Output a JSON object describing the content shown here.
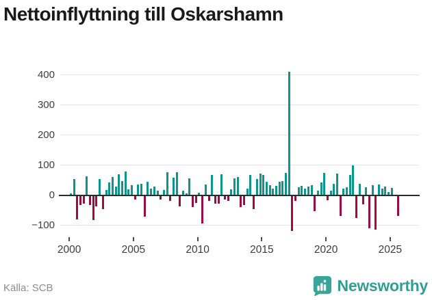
{
  "header": {
    "title": "Nettoinflyttning till Oskarshamn"
  },
  "footer": {
    "source": "Källa: SCB",
    "brand": "Newsworthy"
  },
  "colors": {
    "positive": "#0e948c",
    "negative": "#9a0c42",
    "grid": "#e4e4e4",
    "zero_axis": "#2b2b2b",
    "title_text": "#1a1a1a",
    "tick_text": "#3c3c3c",
    "source_text": "#8c8c8c",
    "brand_teal": "#2f9e95",
    "logo_badge": "#3aa39a"
  },
  "chart_data": {
    "type": "bar",
    "title": "Nettoinflyttning till Oskarshamn",
    "frequency": "quarterly",
    "start_year": 2000,
    "start_quarter": 1,
    "xlim": [
      1999.3,
      2027.3
    ],
    "ylim": [
      -135,
      450
    ],
    "grid": "horizontal",
    "legend": "none",
    "xticks": [
      2000,
      2005,
      2010,
      2015,
      2020,
      2025
    ],
    "yticks": [
      {
        "value": -100,
        "label": "−100"
      },
      {
        "value": 0,
        "label": "0"
      },
      {
        "value": 100,
        "label": "100"
      },
      {
        "value": 200,
        "label": "200"
      },
      {
        "value": 300,
        "label": "300"
      },
      {
        "value": 400,
        "label": "400"
      }
    ],
    "values": [
      6,
      55,
      -80,
      -33,
      -29,
      63,
      -33,
      -83,
      -37,
      55,
      -47,
      17,
      42,
      61,
      30,
      70,
      48,
      78,
      20,
      33,
      -15,
      35,
      38,
      -72,
      44,
      22,
      30,
      15,
      -14,
      17,
      76,
      -18,
      58,
      76,
      -37,
      15,
      5,
      56,
      -40,
      -26,
      8,
      -95,
      36,
      -18,
      68,
      -27,
      -29,
      71,
      -14,
      -19,
      20,
      57,
      60,
      -39,
      -33,
      22,
      68,
      -47,
      53,
      73,
      67,
      44,
      33,
      22,
      31,
      44,
      48,
      75,
      412,
      -120,
      -19,
      26,
      31,
      22,
      28,
      33,
      -52,
      15,
      42,
      75,
      -16,
      15,
      38,
      73,
      -68,
      23,
      27,
      68,
      99,
      -76,
      38,
      -30,
      27,
      -111,
      34,
      -114,
      36,
      23,
      30,
      11,
      24,
      2,
      -68
    ]
  }
}
